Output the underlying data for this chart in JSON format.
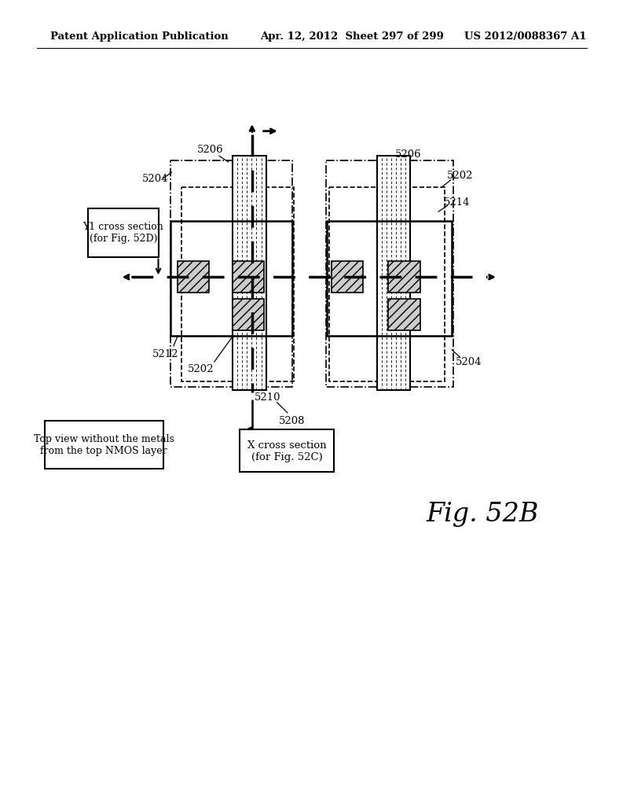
{
  "title_left": "Patent Application Publication",
  "title_center": "Apr. 12, 2012  Sheet 297 of 299",
  "title_right": "US 2012/0088367 A1",
  "fig_label": "Fig. 52B",
  "label_topview": "Top view without the metals\nfrom the top NMOS layer",
  "label_y1": "Y1 cross section\n(for Fig. 52D)",
  "label_x": "X cross section\n(for Fig. 52C)",
  "bg_color": "#ffffff"
}
